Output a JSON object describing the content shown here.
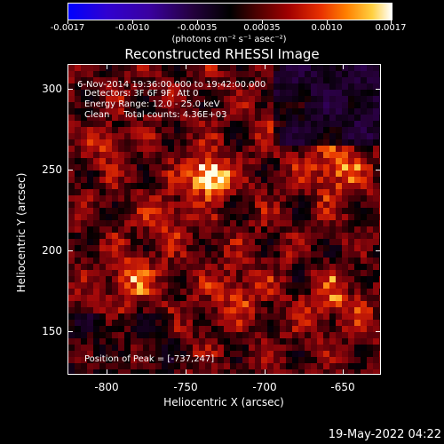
{
  "colorbar": {
    "ticks": [
      "-0.0017",
      "-0.0010",
      "-0.00035",
      "0.00035",
      "0.0010",
      "0.0017"
    ],
    "units": "(photons cm⁻² s⁻¹ asec⁻²)"
  },
  "plot": {
    "title": "Reconstructed RHESSI Image",
    "info_lines": [
      "6-Nov-2014 19:36:00.000 to 19:42:00.000",
      "Detectors: 3F 6F 9F, Att 0",
      "Energy Range: 12.0 - 25.0 keV",
      "Clean     Total counts: 4.36E+03"
    ],
    "peak_text": "Position of Peak = [-737,247]",
    "x_ticks": [
      "-800",
      "-750",
      "-700",
      "-650"
    ],
    "y_ticks": [
      "300",
      "250",
      "200",
      "150"
    ],
    "xlabel": "Heliocentric X (arcsec)",
    "ylabel": "Heliocentric Y (arcsec)"
  },
  "footer": {
    "timestamp": "19-May-2022 04:22"
  },
  "colors": {
    "background": "#000000",
    "foreground": "#ffffff"
  }
}
